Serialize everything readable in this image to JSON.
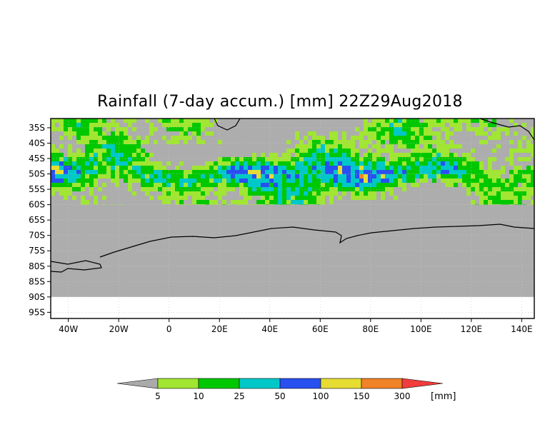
{
  "title": "Rainfall (7-day accum.) [mm] 22Z29Aug2018",
  "map": {
    "lon_range": [
      -47,
      145
    ],
    "lat_range": [
      -97,
      -32
    ],
    "no_data_below_lat": -90,
    "data_cutoff_lat": -60,
    "no_rain_color": "#adadad"
  },
  "lat_ticks": [
    {
      "value": -35,
      "label": "35S"
    },
    {
      "value": -40,
      "label": "40S"
    },
    {
      "value": -45,
      "label": "45S"
    },
    {
      "value": -50,
      "label": "50S"
    },
    {
      "value": -55,
      "label": "55S"
    },
    {
      "value": -60,
      "label": "60S"
    },
    {
      "value": -65,
      "label": "65S"
    },
    {
      "value": -70,
      "label": "70S"
    },
    {
      "value": -75,
      "label": "75S"
    },
    {
      "value": -80,
      "label": "80S"
    },
    {
      "value": -85,
      "label": "85S"
    },
    {
      "value": -90,
      "label": "90S"
    },
    {
      "value": -95,
      "label": "95S"
    }
  ],
  "lon_ticks": [
    {
      "value": -40,
      "label": "40W"
    },
    {
      "value": -20,
      "label": "20W"
    },
    {
      "value": 0,
      "label": "0"
    },
    {
      "value": 20,
      "label": "20E"
    },
    {
      "value": 40,
      "label": "40E"
    },
    {
      "value": 60,
      "label": "60E"
    },
    {
      "value": 80,
      "label": "80E"
    },
    {
      "value": 100,
      "label": "100E"
    },
    {
      "value": 120,
      "label": "120E"
    },
    {
      "value": 140,
      "label": "140E"
    }
  ],
  "colorbar": {
    "unit": "[mm]",
    "under_color": "#aaaaaa",
    "over_color": "#f03c3c",
    "bins": [
      {
        "color": "#a0e632",
        "upper": "10"
      },
      {
        "color": "#00c800",
        "upper": "25"
      },
      {
        "color": "#00c8c8",
        "upper": "50"
      },
      {
        "color": "#2850f0",
        "upper": "100"
      },
      {
        "color": "#e6dc32",
        "upper": "150"
      },
      {
        "color": "#f08228",
        "upper": "300"
      }
    ],
    "labels": [
      "5",
      "10",
      "25",
      "50",
      "100",
      "150",
      "300"
    ]
  }
}
